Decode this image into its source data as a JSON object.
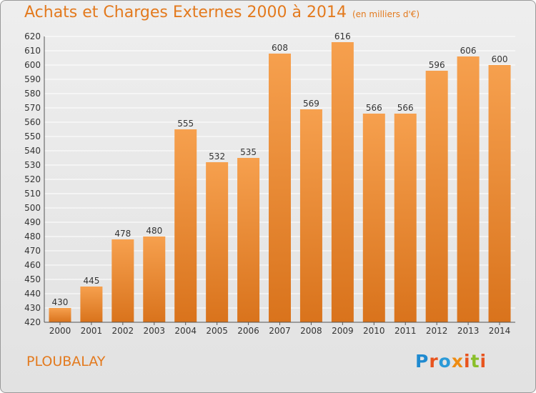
{
  "header": {
    "title": "Achats et Charges Externes 2000 à 2014",
    "subtitle": "(en milliers d'€)"
  },
  "footer": {
    "commune": "PLOUBALAY",
    "logo_text": "Proxiti"
  },
  "colors": {
    "bar_top": "#f6a04e",
    "bar_bottom": "#d9731c",
    "title": "#e37a1e",
    "logo": [
      "#1f8ad0",
      "#e8541e",
      "#2a9ad8",
      "#ee8c12",
      "#e8541e",
      "#8abf2a",
      "#e8541e"
    ]
  },
  "chart_data": {
    "type": "bar",
    "title": "Achats et Charges Externes 2000 à 2014",
    "subtitle": "(en milliers d'€)",
    "categories": [
      "2000",
      "2001",
      "2002",
      "2003",
      "2004",
      "2005",
      "2006",
      "2007",
      "2008",
      "2009",
      "2010",
      "2011",
      "2012",
      "2013",
      "2014"
    ],
    "values": [
      430,
      445,
      478,
      480,
      555,
      532,
      535,
      608,
      569,
      616,
      566,
      566,
      596,
      606,
      600
    ],
    "ylim": [
      420,
      620
    ],
    "yticks": [
      420,
      430,
      440,
      450,
      460,
      470,
      480,
      490,
      500,
      510,
      520,
      530,
      540,
      550,
      560,
      570,
      580,
      590,
      600,
      610,
      620
    ],
    "grid": true,
    "data_labels": true
  }
}
